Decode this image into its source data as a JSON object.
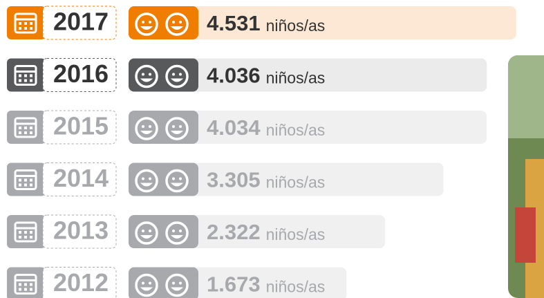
{
  "chart_data": {
    "type": "bar",
    "orientation": "horizontal",
    "categories": [
      "2017",
      "2016",
      "2015",
      "2014",
      "2013",
      "2012"
    ],
    "values": [
      4531,
      4036,
      4034,
      3305,
      2322,
      1673
    ],
    "value_labels": [
      "4.531",
      "4.036",
      "4.034",
      "3.305",
      "2.322",
      "1.673"
    ],
    "unit": "niños/as",
    "colors": [
      "#ef7d00",
      "#58595b",
      "#a7a9ac",
      "#a7a9ac",
      "#a7a9ac",
      "#a7a9ac"
    ],
    "bar_colors": [
      "#fde8d5",
      "#ebebeb",
      "#f0f0f0",
      "#f0f0f0",
      "#f0f0f0",
      "#f0f0f0"
    ],
    "text_colors": [
      "#333333",
      "#333333",
      "#a7a9ac",
      "#a7a9ac",
      "#a7a9ac",
      "#a7a9ac"
    ],
    "xlim": [
      -2000,
      5000
    ]
  }
}
